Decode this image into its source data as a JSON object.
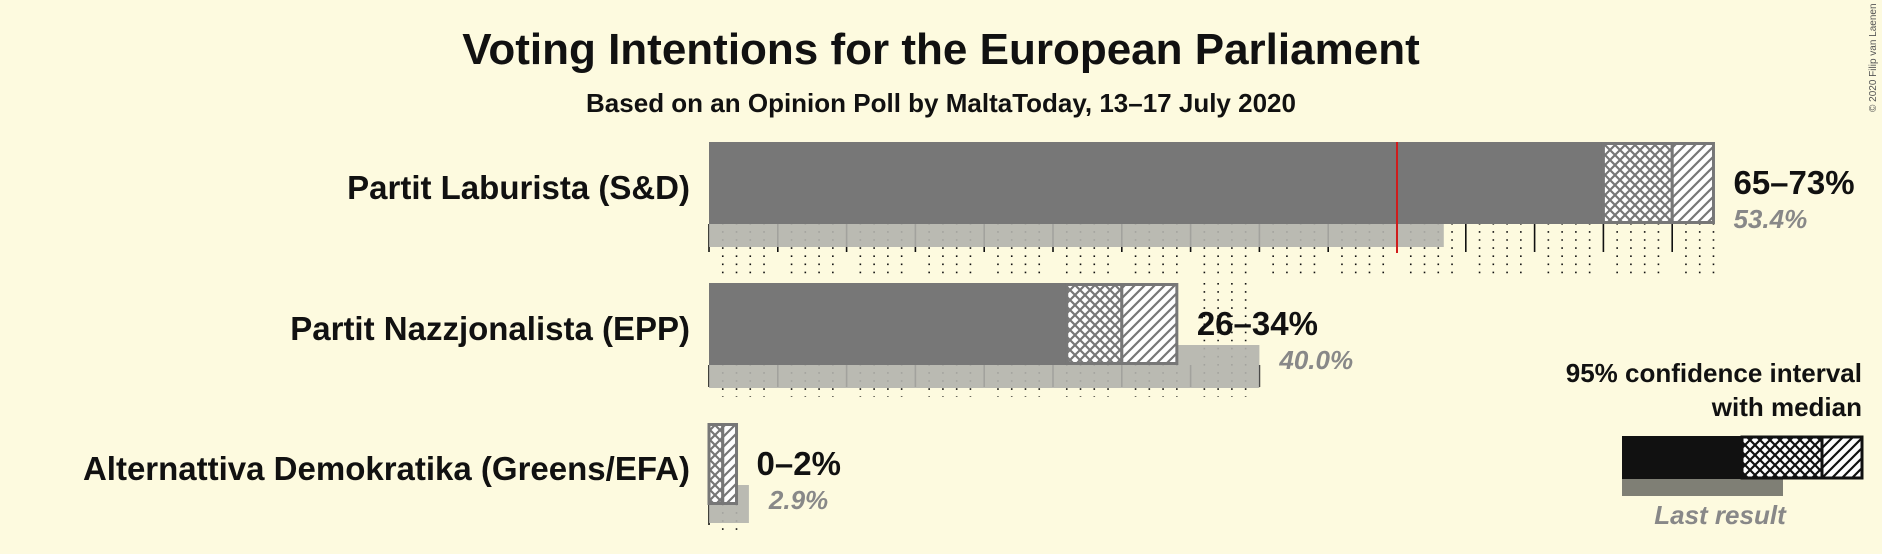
{
  "title": "Voting Intentions for the European Parliament",
  "subtitle": "Based on an Opinion Poll by MaltaToday, 13–17 July 2020",
  "copyright": "© 2020 Filip van Laenen",
  "chart_data": {
    "type": "bar",
    "orientation": "horizontal",
    "title": "Voting Intentions for the European Parliament",
    "subtitle": "Based on an Opinion Poll by MaltaToday, 13–17 July 2020",
    "x_unit": "%",
    "xlim": [
      0,
      75
    ],
    "majority_line": 50,
    "categories": [
      "Partit Laburista (S&D)",
      "Partit Nazzjonalista (EPP)",
      "Alternattiva Demokratika (Greens/EFA)"
    ],
    "series": [
      {
        "name": "95% confidence interval",
        "low": [
          65,
          26,
          0
        ],
        "high": [
          73,
          34,
          2
        ],
        "median": [
          70,
          30,
          1
        ]
      },
      {
        "name": "Last result",
        "values": [
          53.4,
          40.0,
          2.9
        ]
      }
    ],
    "range_labels": [
      "65–73%",
      "26–34%",
      "0–2%"
    ],
    "last_labels": [
      "53.4%",
      "40.0%",
      "2.9%"
    ],
    "colors": {
      "bar": "#777777",
      "last": "#b3b3ad",
      "majority": "#d01c1c",
      "legend_bar": "#111111",
      "legend_last": "#7f7f75",
      "background": "#fdfadf"
    }
  },
  "legend": {
    "line1": "95% confidence interval",
    "line2": "with median",
    "last_result": "Last result"
  }
}
